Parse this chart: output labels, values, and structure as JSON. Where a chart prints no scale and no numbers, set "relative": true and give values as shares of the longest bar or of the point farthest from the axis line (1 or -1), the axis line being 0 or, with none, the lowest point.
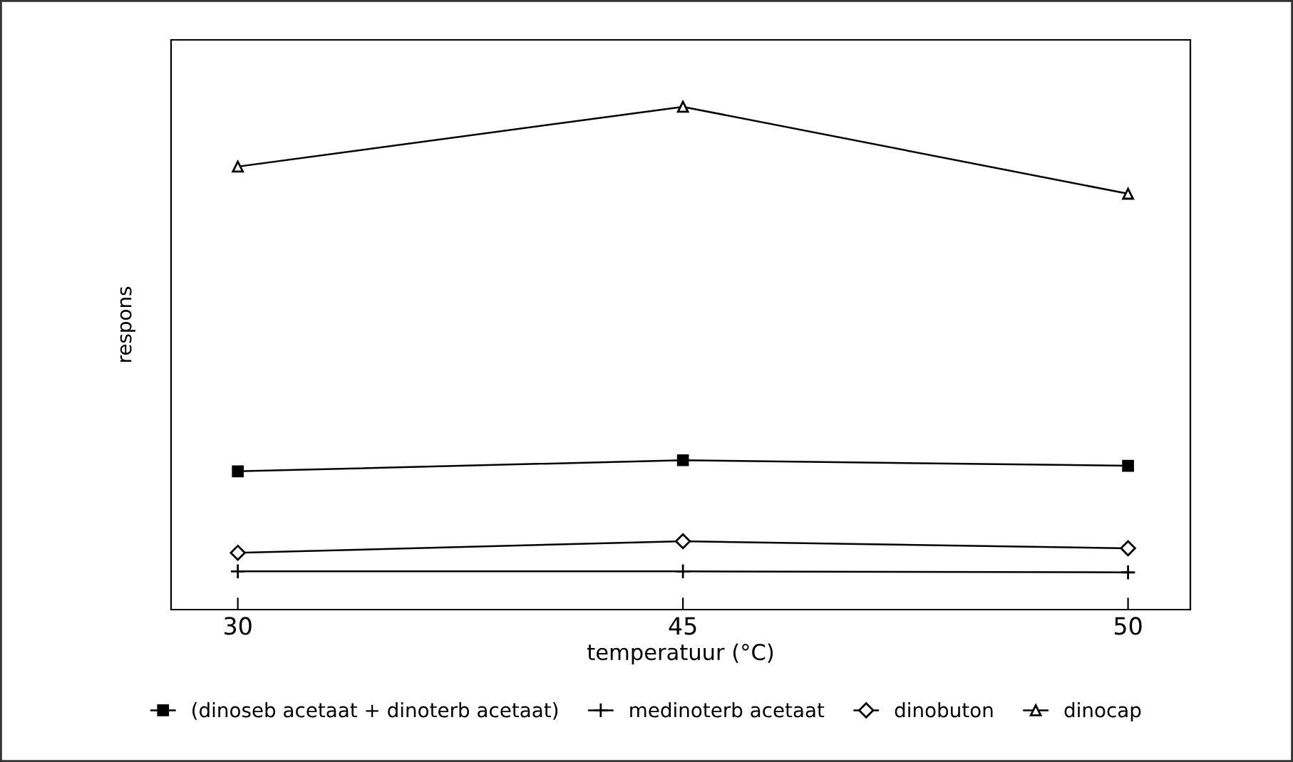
{
  "chart_data": {
    "type": "line",
    "relative": true,
    "xlabel": "temperatuur (°C)",
    "ylabel": "respons",
    "categories": [
      "30",
      "45",
      "50"
    ],
    "tick_labels": "x",
    "legend": "bottom",
    "grid": false,
    "line_style": "solid",
    "series": [
      {
        "name": "(dinoseb acetaat + dinoterb acetaat)",
        "color": "#000000",
        "marker": "square",
        "values": [
          0.275,
          0.297,
          0.286
        ]
      },
      {
        "name": "medinoterb acetaat",
        "color": "#000000",
        "marker": "cross",
        "values": [
          0.076,
          0.076,
          0.074
        ]
      },
      {
        "name": "dinobuton",
        "color": "#000000",
        "marker": "diamond",
        "values": [
          0.113,
          0.136,
          0.122
        ]
      },
      {
        "name": "dinocap",
        "color": "#000000",
        "marker": "triangle",
        "values": [
          0.881,
          1,
          0.827
        ]
      }
    ]
  }
}
